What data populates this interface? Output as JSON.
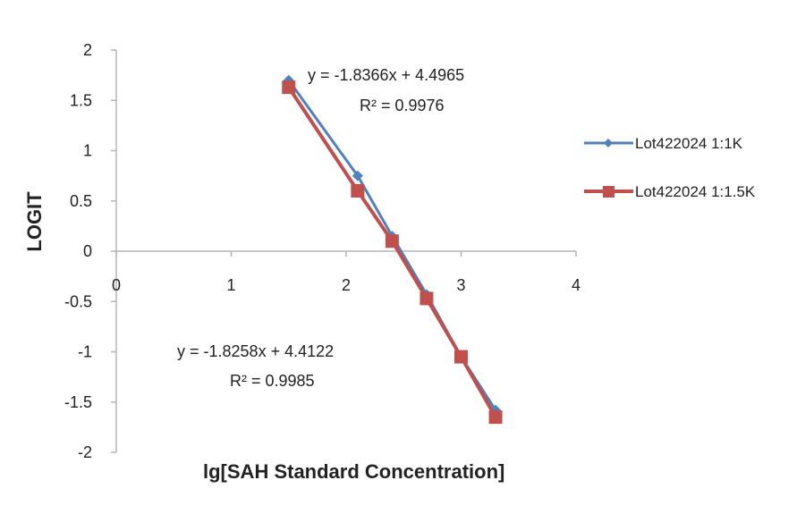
{
  "chart_data": {
    "type": "line",
    "xlabel": "lg[SAH Standard Concentration]",
    "ylabel": "LOGIT",
    "xlim": [
      0,
      4
    ],
    "ylim": [
      -2,
      2
    ],
    "x_ticks": [
      0,
      1,
      2,
      3,
      4
    ],
    "y_ticks": [
      2,
      1.5,
      1,
      0.5,
      0,
      -0.5,
      -1,
      -1.5,
      -2
    ],
    "x_tick_labels": [
      "0",
      "1",
      "2",
      "3",
      "4"
    ],
    "y_tick_labels": [
      "2",
      "1.5",
      "1",
      "0.5",
      "0",
      "-0.5",
      "-1",
      "-1.5",
      "-2"
    ],
    "grid": false,
    "legend_position": "right",
    "series": [
      {
        "name": "Lot422024 1:1K",
        "color": "#4f81bd",
        "marker": "diamond",
        "x": [
          1.5,
          2.1,
          2.4,
          2.7,
          3.0,
          3.3
        ],
        "y": [
          1.7,
          0.75,
          0.15,
          -0.43,
          -1.05,
          -1.58
        ]
      },
      {
        "name": "Lot422024 1:1.5K",
        "color": "#c0504d",
        "marker": "square",
        "x": [
          1.5,
          2.1,
          2.4,
          2.7,
          3.0,
          3.3
        ],
        "y": [
          1.63,
          0.6,
          0.1,
          -0.47,
          -1.05,
          -1.65
        ]
      }
    ],
    "annotations": [
      {
        "line1": "y = -1.8366x + 4.4965",
        "line2": "R² = 0.9976"
      },
      {
        "line1": "y = -1.8258x + 4.4122",
        "line2": "R² = 0.9985"
      }
    ]
  }
}
